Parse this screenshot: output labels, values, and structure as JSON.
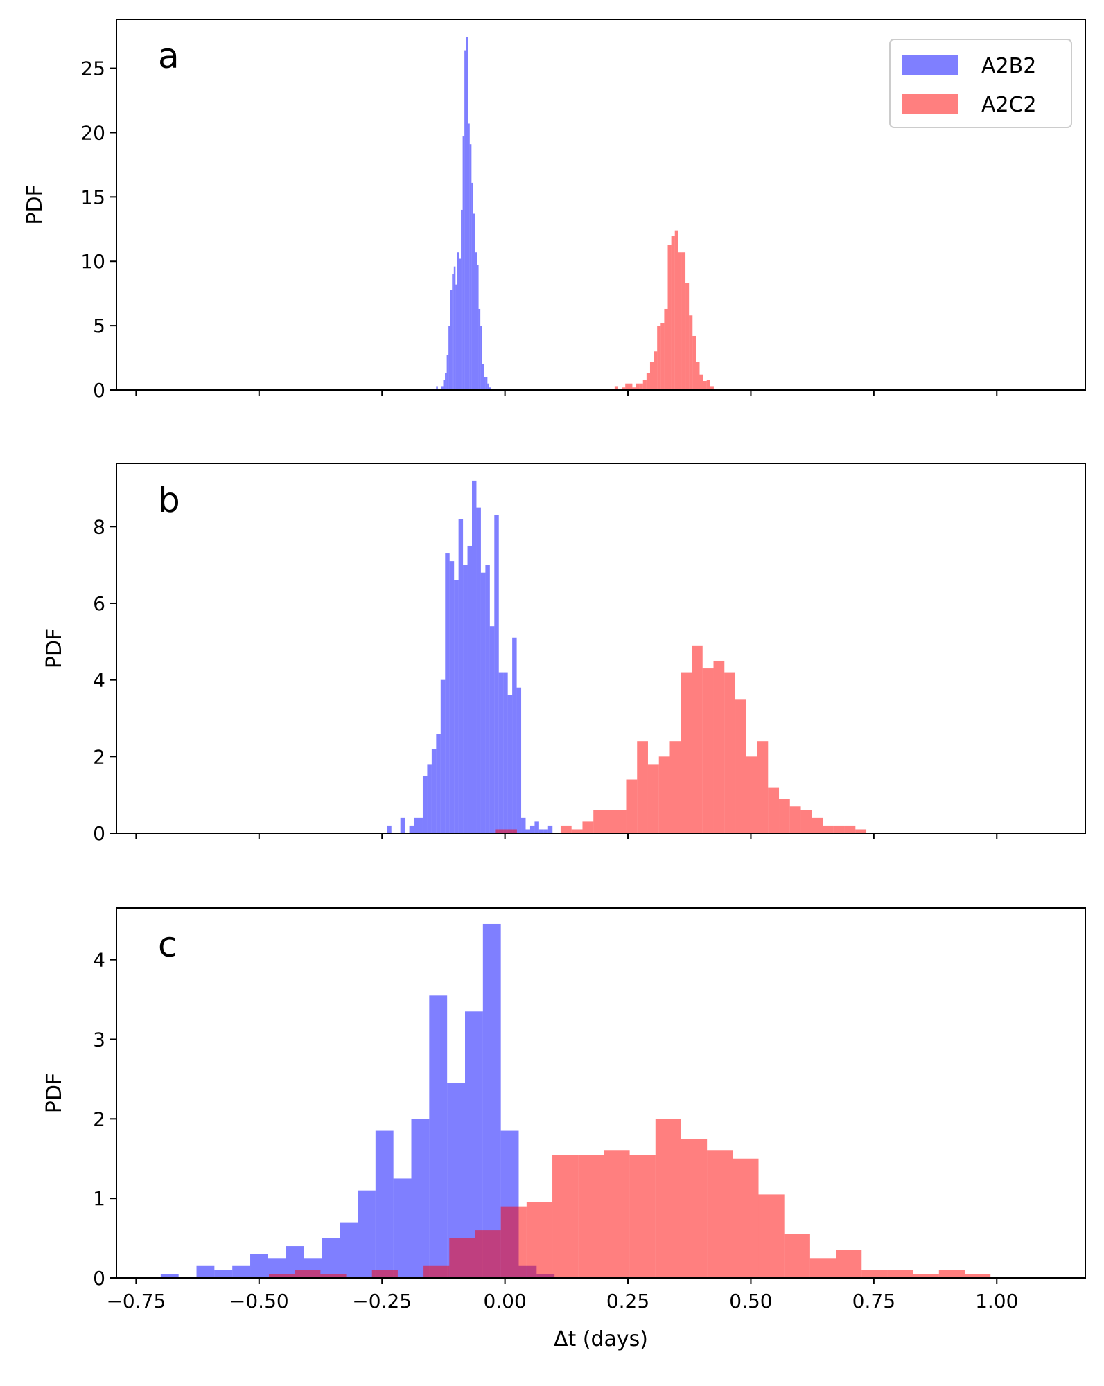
{
  "chart_data": [
    {
      "type": "bar",
      "panel_label": "a",
      "ylabel": "PDF",
      "xlim": [
        -0.79,
        1.18
      ],
      "ylim": [
        0,
        28.8
      ],
      "yticks": [
        0,
        5,
        10,
        15,
        20,
        25
      ],
      "ytick_labels": [
        "0",
        "5",
        "10",
        "15",
        "20",
        "25"
      ],
      "xticks": [
        -0.75,
        -0.5,
        -0.25,
        0.0,
        0.25,
        0.5,
        0.75,
        1.0
      ],
      "xtick_labels": [],
      "legend": {
        "position": "top-right",
        "entries": [
          "A2B2",
          "A2C2"
        ]
      },
      "series": [
        {
          "name": "A2B2",
          "color": "#0000ff",
          "bin_start": -0.14,
          "bin_width": 0.0036,
          "values": [
            0.3,
            0.0,
            0.0,
            0.3,
            0.8,
            1.3,
            2.7,
            5.0,
            7.8,
            9.0,
            9.6,
            8.2,
            10.7,
            10.2,
            14.0,
            19.7,
            26.4,
            27.4,
            20.7,
            19.1,
            16.1,
            13.7,
            10.7,
            9.7,
            6.3,
            5.0,
            2.0,
            1.0,
            1.0,
            0.5,
            0.2
          ]
        },
        {
          "name": "A2C2",
          "color": "#ff0000",
          "bin_start": 0.223,
          "bin_width": 0.0072,
          "values": [
            0.3,
            0.0,
            0.2,
            0.5,
            0.5,
            0.2,
            0.5,
            0.5,
            0.8,
            1.3,
            2.2,
            3.0,
            5.0,
            5.2,
            6.3,
            11.3,
            12.0,
            12.4,
            10.7,
            10.7,
            8.3,
            5.8,
            4.2,
            2.2,
            1.2,
            0.7,
            0.8,
            0.3
          ]
        }
      ]
    },
    {
      "type": "bar",
      "panel_label": "b",
      "ylabel": "PDF",
      "xlim": [
        -0.79,
        1.18
      ],
      "ylim": [
        0,
        9.65
      ],
      "yticks": [
        0,
        2,
        4,
        6,
        8
      ],
      "ytick_labels": [
        "0",
        "2",
        "4",
        "6",
        "8"
      ],
      "xticks": [
        -0.75,
        -0.5,
        -0.25,
        0.0,
        0.25,
        0.5,
        0.75,
        1.0
      ],
      "xtick_labels": [],
      "series": [
        {
          "name": "A2B2",
          "color": "#0000ff",
          "bin_start": -0.24,
          "bin_width": 0.0091,
          "values": [
            0.2,
            0.0,
            0.0,
            0.4,
            0.0,
            0.2,
            0.4,
            0.4,
            1.5,
            1.8,
            2.2,
            2.6,
            4.0,
            7.3,
            7.1,
            6.6,
            8.2,
            7.0,
            7.5,
            9.2,
            8.5,
            6.8,
            7.0,
            5.4,
            8.3,
            4.2,
            4.2,
            3.6,
            5.1,
            3.8,
            0.4,
            0.1,
            0.2,
            0.3,
            0.1,
            0.1,
            0.2
          ]
        },
        {
          "name": "A2C2",
          "color": "#ff0000",
          "bin_start": -0.02,
          "bin_width": 0.0222,
          "values": [
            0.1,
            0.1,
            0.0,
            0.0,
            0.0,
            0.0,
            0.2,
            0.1,
            0.3,
            0.6,
            0.6,
            0.6,
            1.4,
            2.4,
            1.8,
            2.0,
            2.4,
            4.2,
            4.9,
            4.3,
            4.5,
            4.2,
            3.5,
            2.0,
            2.4,
            1.2,
            0.9,
            0.7,
            0.6,
            0.4,
            0.2,
            0.2,
            0.2,
            0.1
          ]
        }
      ]
    },
    {
      "type": "bar",
      "panel_label": "c",
      "ylabel": "PDF",
      "xlabel": "Δt (days)",
      "xlim": [
        -0.79,
        1.18
      ],
      "ylim": [
        0,
        4.65
      ],
      "yticks": [
        0,
        1,
        2,
        3,
        4
      ],
      "ytick_labels": [
        "0",
        "1",
        "2",
        "3",
        "4"
      ],
      "xticks": [
        -0.75,
        -0.5,
        -0.25,
        0.0,
        0.25,
        0.5,
        0.75,
        1.0
      ],
      "xtick_labels": [
        "−0.75",
        "−0.50",
        "−0.25",
        "0.00",
        "0.25",
        "0.50",
        "0.75",
        "1.00"
      ],
      "series": [
        {
          "name": "A2B2",
          "color": "#0000ff",
          "bin_start": -0.7,
          "bin_width": 0.0364,
          "values": [
            0.05,
            0.0,
            0.15,
            0.1,
            0.15,
            0.3,
            0.25,
            0.4,
            0.25,
            0.5,
            0.7,
            1.1,
            1.85,
            1.25,
            2.0,
            3.55,
            2.45,
            3.35,
            4.45,
            1.85,
            0.15,
            0.05,
            0.0,
            0.0,
            0.0
          ]
        },
        {
          "name": "A2C2",
          "color": "#ff0000",
          "bin_start": -0.48,
          "bin_width": 0.0524,
          "values": [
            0.05,
            0.1,
            0.05,
            0.0,
            0.1,
            0.0,
            0.15,
            0.5,
            0.6,
            0.9,
            0.95,
            1.55,
            1.55,
            1.6,
            1.55,
            2.0,
            1.75,
            1.6,
            1.5,
            1.05,
            0.55,
            0.25,
            0.35,
            0.1,
            0.1,
            0.05,
            0.1,
            0.05
          ]
        }
      ]
    }
  ]
}
